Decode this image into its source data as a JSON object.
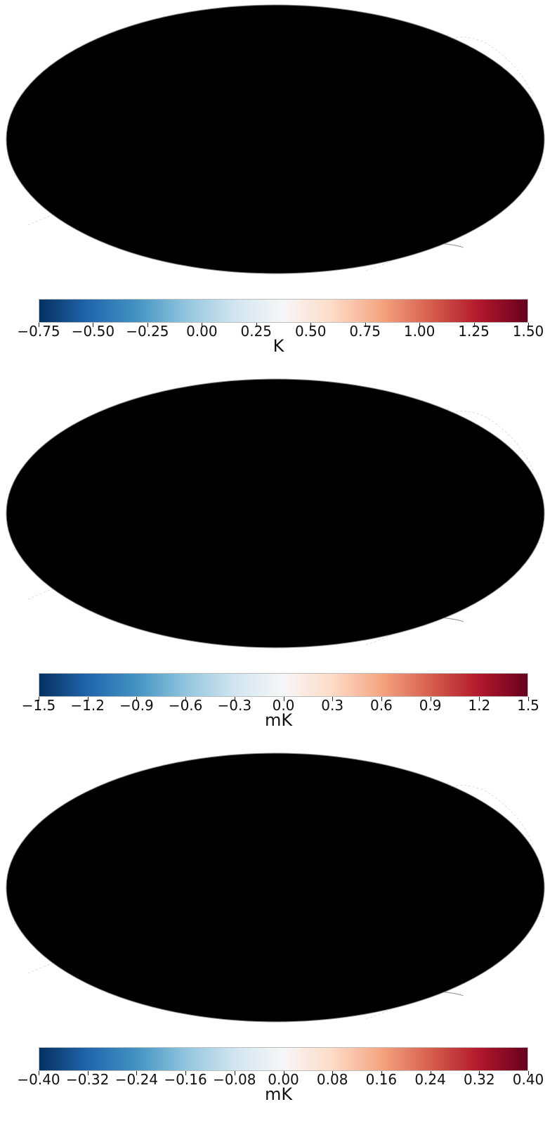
{
  "colormap": [
    "#053061",
    "#2166ac",
    "#4393c3",
    "#92c5de",
    "#d1e5f0",
    "#f7f7f7",
    "#fddbc7",
    "#f4a582",
    "#d6604d",
    "#b2182b",
    "#67001f"
  ],
  "chart_data": [
    {
      "type": "heatmap",
      "projection": "mollweide",
      "field": "smooth",
      "seed": 11,
      "colorbar": {
        "min": -0.75,
        "max": 1.5,
        "unit": "K",
        "ticks": [
          "−0.75",
          "−0.50",
          "−0.25",
          "0.00",
          "0.25",
          "0.50",
          "0.75",
          "1.00",
          "1.25",
          "1.50"
        ]
      }
    },
    {
      "type": "heatmap",
      "projection": "mollweide",
      "field": "noise",
      "seed": 23,
      "colorbar": {
        "min": -1.5,
        "max": 1.5,
        "unit": "mK",
        "ticks": [
          "−1.5",
          "−1.2",
          "−0.9",
          "−0.6",
          "−0.3",
          "0.0",
          "0.3",
          "0.6",
          "0.9",
          "1.2",
          "1.5"
        ]
      }
    },
    {
      "type": "heatmap",
      "projection": "mollweide",
      "field": "residual",
      "seed": 37,
      "colorbar": {
        "min": -0.4,
        "max": 0.4,
        "unit": "mK",
        "ticks": [
          "−0.40",
          "−0.32",
          "−0.24",
          "−0.16",
          "−0.08",
          "0.00",
          "0.08",
          "0.16",
          "0.24",
          "0.32",
          "0.40"
        ]
      }
    }
  ]
}
